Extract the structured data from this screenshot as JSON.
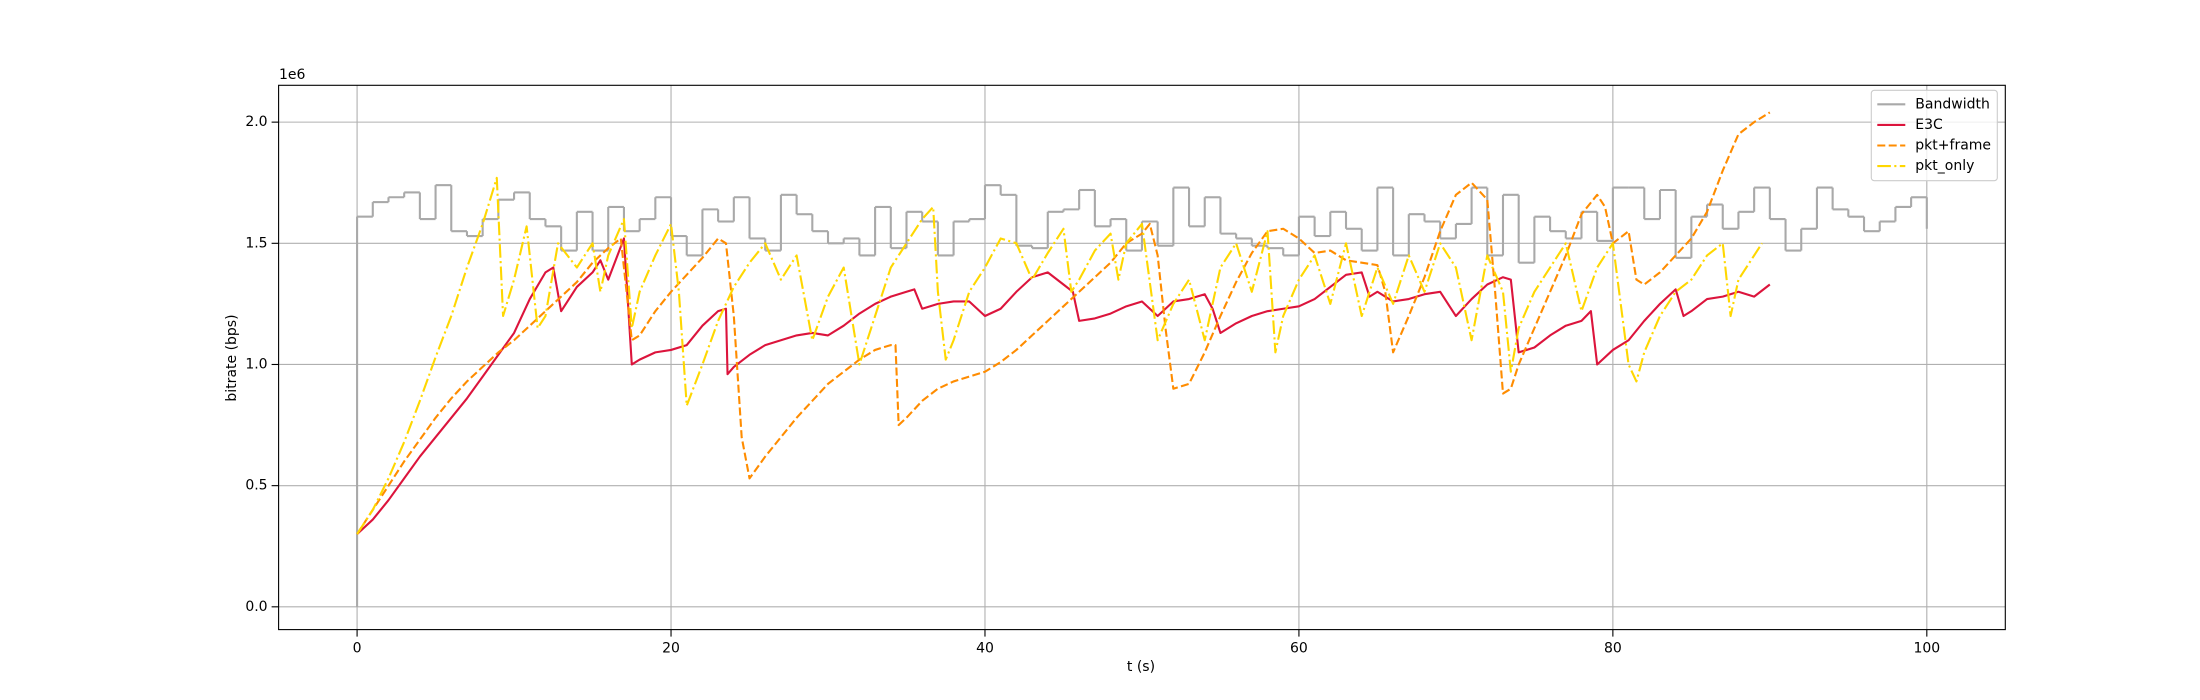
{
  "chart_data": {
    "type": "line",
    "xlabel": "t (s)",
    "ylabel": "bitrate (bps)",
    "y_offset_label": "1e6",
    "xlim": [
      -5,
      105
    ],
    "ylim": [
      -0.094,
      2.152
    ],
    "xticks": [
      0,
      20,
      40,
      60,
      80,
      100
    ],
    "yticks": [
      {
        "value": 0,
        "label": "0.0"
      },
      0.5,
      {
        "value": 1,
        "label": "1.0"
      },
      1.5,
      {
        "value": 2,
        "label": "2.0"
      }
    ],
    "grid": true,
    "legend": "upper right",
    "series": [
      {
        "name": "Bandwidth",
        "color": "#a9a9a9",
        "dash": "solid",
        "step": "post",
        "x": [
          0,
          0,
          1,
          2,
          3,
          4,
          5,
          6,
          7,
          8,
          9,
          10,
          11,
          12,
          13,
          14,
          15,
          16,
          17,
          18,
          19,
          20,
          21,
          22,
          23,
          24,
          25,
          26,
          27,
          28,
          29,
          30,
          31,
          32,
          33,
          34,
          35,
          36,
          37,
          38,
          39,
          40,
          41,
          42,
          43,
          44,
          45,
          46,
          47,
          48,
          49,
          50,
          51,
          52,
          53,
          54,
          55,
          56,
          57,
          58,
          59,
          60,
          61,
          62,
          63,
          64,
          65,
          66,
          67,
          68,
          69,
          70,
          71,
          72,
          73,
          74,
          75,
          76,
          77,
          78,
          79,
          80,
          81,
          82,
          83,
          84,
          85,
          86,
          87,
          88,
          89,
          90,
          91,
          92,
          93,
          94,
          95,
          96,
          97,
          98,
          99,
          100
        ],
        "values": [
          0,
          1.61,
          1.67,
          1.69,
          1.71,
          1.6,
          1.74,
          1.55,
          1.53,
          1.6,
          1.68,
          1.71,
          1.6,
          1.57,
          1.47,
          1.63,
          1.47,
          1.65,
          1.55,
          1.6,
          1.69,
          1.53,
          1.45,
          1.64,
          1.59,
          1.69,
          1.52,
          1.47,
          1.7,
          1.62,
          1.55,
          1.5,
          1.52,
          1.45,
          1.65,
          1.48,
          1.63,
          1.59,
          1.45,
          1.59,
          1.6,
          1.74,
          1.7,
          1.49,
          1.48,
          1.63,
          1.64,
          1.72,
          1.57,
          1.6,
          1.47,
          1.59,
          1.49,
          1.73,
          1.57,
          1.69,
          1.54,
          1.52,
          1.49,
          1.48,
          1.45,
          1.61,
          1.53,
          1.63,
          1.56,
          1.47,
          1.73,
          1.45,
          1.62,
          1.59,
          1.52,
          1.58,
          1.73,
          1.45,
          1.7,
          1.42,
          1.61,
          1.55,
          1.52,
          1.63,
          1.51,
          1.73,
          1.73,
          1.6,
          1.72,
          1.44,
          1.61,
          1.66,
          1.56,
          1.63,
          1.73,
          1.6,
          1.47,
          1.56,
          1.73,
          1.64,
          1.61,
          1.55,
          1.59,
          1.65,
          1.69,
          1.56
        ]
      },
      {
        "name": "E3C",
        "color": "#dc143c",
        "dash": "solid",
        "x": [
          0,
          1,
          2,
          3,
          4,
          5,
          6,
          7,
          8,
          9,
          10,
          11,
          12,
          12.5,
          13,
          14,
          15,
          15.5,
          16,
          17,
          17.5,
          18,
          19,
          20,
          21,
          22,
          23,
          23.5,
          23.6,
          24,
          25,
          26,
          27,
          28,
          29,
          30,
          31,
          32,
          33,
          34,
          35,
          35.5,
          36,
          37,
          38,
          39,
          40,
          41,
          42,
          43,
          44,
          45,
          45.6,
          46,
          47,
          48,
          49,
          50,
          51,
          52,
          53,
          54,
          54.5,
          55,
          56,
          57,
          58,
          59,
          60,
          61,
          62,
          63,
          64,
          64.5,
          65,
          66,
          67,
          68,
          69,
          70,
          71,
          72,
          73,
          73.5,
          74,
          75,
          76,
          77,
          78,
          78.6,
          79,
          80,
          81,
          82,
          83,
          84,
          84.5,
          85,
          86,
          87,
          88,
          89,
          90
        ],
        "values": [
          0.3,
          0.36,
          0.44,
          0.53,
          0.62,
          0.7,
          0.78,
          0.86,
          0.95,
          1.04,
          1.13,
          1.27,
          1.38,
          1.4,
          1.22,
          1.32,
          1.38,
          1.43,
          1.35,
          1.52,
          1.0,
          1.02,
          1.05,
          1.06,
          1.08,
          1.16,
          1.22,
          1.23,
          0.96,
          0.99,
          1.04,
          1.08,
          1.1,
          1.12,
          1.13,
          1.12,
          1.16,
          1.21,
          1.25,
          1.28,
          1.3,
          1.31,
          1.23,
          1.25,
          1.26,
          1.26,
          1.2,
          1.23,
          1.3,
          1.36,
          1.38,
          1.33,
          1.3,
          1.18,
          1.19,
          1.21,
          1.24,
          1.26,
          1.2,
          1.26,
          1.27,
          1.29,
          1.23,
          1.13,
          1.17,
          1.2,
          1.22,
          1.23,
          1.24,
          1.27,
          1.32,
          1.37,
          1.38,
          1.28,
          1.3,
          1.26,
          1.27,
          1.29,
          1.3,
          1.2,
          1.27,
          1.33,
          1.36,
          1.35,
          1.05,
          1.07,
          1.12,
          1.16,
          1.18,
          1.22,
          1.0,
          1.06,
          1.1,
          1.18,
          1.25,
          1.31,
          1.2,
          1.22,
          1.27,
          1.28,
          1.3,
          1.28,
          1.33
        ]
      },
      {
        "name": "pkt+frame",
        "color": "#ff8c00",
        "dash": "dashed",
        "x": [
          0,
          1,
          2,
          3,
          4,
          5,
          6,
          7,
          8,
          9,
          10,
          11,
          12,
          13,
          14,
          15,
          16,
          16.8,
          17.5,
          18,
          19,
          20,
          21,
          22,
          23,
          23.5,
          24,
          24.5,
          25,
          26,
          27,
          28,
          29,
          30,
          31,
          32,
          33,
          34,
          34.3,
          34.5,
          35,
          36,
          37,
          38,
          39,
          40,
          41,
          42,
          43,
          44,
          45,
          46,
          47,
          48,
          49,
          50,
          50.5,
          51,
          51.5,
          52,
          53,
          54,
          55,
          56,
          57,
          58,
          59,
          60,
          61,
          62,
          63,
          64,
          65,
          65.5,
          66,
          67,
          68,
          69,
          70,
          71,
          72,
          72.5,
          73,
          73.5,
          74,
          75,
          76,
          77,
          78,
          79,
          79.5,
          80,
          81,
          81.5,
          82,
          83,
          84,
          85,
          86,
          87,
          88,
          89,
          90
        ],
        "values": [
          0.3,
          0.4,
          0.5,
          0.6,
          0.69,
          0.78,
          0.86,
          0.93,
          0.99,
          1.05,
          1.1,
          1.16,
          1.22,
          1.28,
          1.34,
          1.42,
          1.48,
          1.52,
          1.1,
          1.12,
          1.22,
          1.3,
          1.37,
          1.44,
          1.52,
          1.5,
          1.2,
          0.7,
          0.53,
          0.62,
          0.7,
          0.78,
          0.85,
          0.92,
          0.97,
          1.02,
          1.06,
          1.08,
          1.08,
          0.75,
          0.78,
          0.85,
          0.9,
          0.93,
          0.95,
          0.97,
          1.01,
          1.06,
          1.12,
          1.18,
          1.24,
          1.3,
          1.36,
          1.42,
          1.5,
          1.54,
          1.58,
          1.45,
          1.15,
          0.9,
          0.92,
          1.05,
          1.2,
          1.34,
          1.46,
          1.55,
          1.56,
          1.52,
          1.46,
          1.47,
          1.43,
          1.42,
          1.41,
          1.3,
          1.05,
          1.2,
          1.36,
          1.55,
          1.7,
          1.75,
          1.68,
          1.3,
          0.88,
          0.9,
          1.0,
          1.15,
          1.3,
          1.45,
          1.62,
          1.7,
          1.65,
          1.5,
          1.55,
          1.35,
          1.33,
          1.38,
          1.45,
          1.52,
          1.63,
          1.8,
          1.95,
          2.0,
          2.04
        ]
      },
      {
        "name": "pkt_only",
        "color": "#ffd700",
        "dash": "dashdot",
        "x": [
          0,
          1,
          2,
          3,
          4,
          5,
          6,
          7,
          8,
          8.9,
          9.3,
          10,
          10.8,
          11.5,
          12,
          12.8,
          14,
          15,
          15.5,
          16,
          17,
          17.5,
          18,
          19,
          20,
          20.5,
          21,
          22,
          23,
          24,
          25,
          26,
          27,
          28,
          29,
          30,
          31,
          32,
          33,
          34,
          35,
          36,
          36.7,
          37,
          37.5,
          38,
          39,
          40,
          41,
          42,
          43,
          44,
          45,
          45.5,
          46,
          47,
          48,
          48.5,
          49,
          50,
          51,
          52,
          53,
          54,
          55,
          56,
          57,
          58,
          58.5,
          59,
          60,
          61,
          62,
          63,
          64,
          65,
          66,
          67,
          68,
          69,
          70,
          71,
          72,
          73,
          73.5,
          74,
          75,
          76,
          77,
          78,
          79,
          80,
          81,
          81.5,
          82,
          83,
          84,
          85,
          86,
          87,
          87.5,
          88,
          89,
          89.5
        ],
        "values": [
          0.3,
          0.4,
          0.53,
          0.68,
          0.85,
          1.03,
          1.2,
          1.4,
          1.58,
          1.77,
          1.2,
          1.35,
          1.57,
          1.15,
          1.2,
          1.5,
          1.4,
          1.5,
          1.3,
          1.45,
          1.6,
          1.15,
          1.3,
          1.45,
          1.58,
          1.3,
          0.83,
          1.0,
          1.18,
          1.32,
          1.42,
          1.5,
          1.35,
          1.45,
          1.1,
          1.28,
          1.4,
          1.0,
          1.2,
          1.4,
          1.5,
          1.6,
          1.65,
          1.3,
          1.02,
          1.1,
          1.3,
          1.4,
          1.52,
          1.5,
          1.35,
          1.46,
          1.56,
          1.3,
          1.35,
          1.47,
          1.54,
          1.35,
          1.5,
          1.58,
          1.1,
          1.25,
          1.35,
          1.1,
          1.4,
          1.5,
          1.3,
          1.55,
          1.05,
          1.2,
          1.35,
          1.45,
          1.25,
          1.5,
          1.2,
          1.4,
          1.25,
          1.45,
          1.3,
          1.5,
          1.4,
          1.1,
          1.45,
          1.3,
          0.97,
          1.15,
          1.3,
          1.4,
          1.5,
          1.22,
          1.4,
          1.5,
          1.0,
          0.93,
          1.05,
          1.2,
          1.3,
          1.35,
          1.45,
          1.5,
          1.2,
          1.35,
          1.45,
          1.5
        ]
      }
    ]
  }
}
